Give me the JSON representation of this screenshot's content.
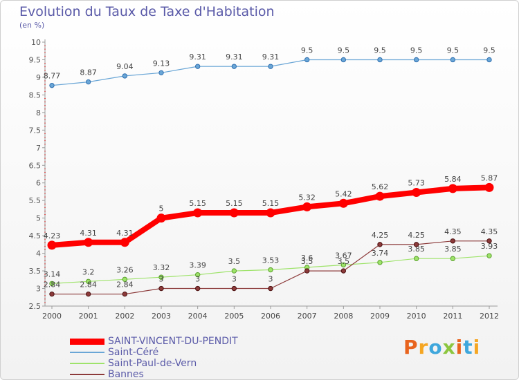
{
  "title": "Evolution du Taux de Taxe d'Habitation",
  "subtitle": "(en %)",
  "logo": {
    "text": "Proxiti",
    "letters": [
      {
        "ch": "P",
        "color": "#e8641e"
      },
      {
        "ch": "r",
        "color": "#f5a623"
      },
      {
        "ch": "o",
        "color": "#3fa7dc"
      },
      {
        "ch": "x",
        "color": "#8cc63f"
      },
      {
        "ch": "i",
        "color": "#e8641e"
      },
      {
        "ch": "t",
        "color": "#3fa7dc"
      },
      {
        "ch": "i",
        "color": "#f5a623"
      }
    ]
  },
  "chart_data": {
    "type": "line",
    "title": "Evolution du Taux de Taxe d'Habitation",
    "subtitle": "(en %)",
    "x": [
      2000,
      2001,
      2002,
      2003,
      2004,
      2005,
      2006,
      2007,
      2008,
      2009,
      2010,
      2011,
      2012
    ],
    "ylim": [
      2.5,
      10
    ],
    "yticks": [
      "2.5",
      "3",
      "3.5",
      "4",
      "4.5",
      "5",
      "5.5",
      "6",
      "6.5",
      "7",
      "7.5",
      "8",
      "8.5",
      "9",
      "9.5",
      "10"
    ],
    "grid": false,
    "legend_position": "bottom-left",
    "series": [
      {
        "name": "SAINT-VINCENT-DU-PENDIT",
        "color": "#ff0000",
        "values": [
          4.23,
          4.31,
          4.31,
          5,
          5.15,
          5.15,
          5.15,
          5.32,
          5.42,
          5.62,
          5.73,
          5.84,
          5.87
        ],
        "labels": [
          "4.23",
          "4.31",
          "4.31",
          "5",
          "5.15",
          "5.15",
          "5.15",
          "5.32",
          "5.42",
          "5.62",
          "5.73",
          "5.84",
          "5.87"
        ]
      },
      {
        "name": "Saint-Céré",
        "color": "#6aa6d6",
        "values": [
          8.77,
          8.87,
          9.04,
          9.13,
          9.31,
          9.31,
          9.31,
          9.5,
          9.5,
          9.5,
          9.5,
          9.5,
          9.5
        ],
        "labels": [
          "8.77",
          "8.87",
          "9.04",
          "9.13",
          "9.31",
          "9.31",
          "9.31",
          "9.5",
          "9.5",
          "9.5",
          "9.5",
          "9.5",
          "9.5"
        ]
      },
      {
        "name": "Saint-Paul-de-Vern",
        "color": "#9ee36a",
        "values": [
          3.14,
          3.2,
          3.26,
          3.32,
          3.39,
          3.5,
          3.53,
          3.6,
          3.67,
          3.74,
          3.85,
          3.85,
          3.93
        ],
        "labels": [
          "3.14",
          "3.2",
          "3.26",
          "3.32",
          "3.39",
          "3.5",
          "3.53",
          "3.6",
          "3.67",
          "3.74",
          "3.85",
          "3.85",
          "3.93"
        ]
      },
      {
        "name": "Bannes",
        "color": "#8c3a3a",
        "values": [
          2.84,
          2.84,
          2.84,
          3,
          3,
          3,
          3,
          3.5,
          3.5,
          4.25,
          4.25,
          4.35,
          4.35
        ],
        "labels": [
          "2.84",
          "2.84",
          "2.84",
          "3",
          "3",
          "3",
          "3",
          "3.5",
          "3.5",
          "4.25",
          "4.25",
          "4.35",
          "4.35"
        ]
      }
    ]
  }
}
